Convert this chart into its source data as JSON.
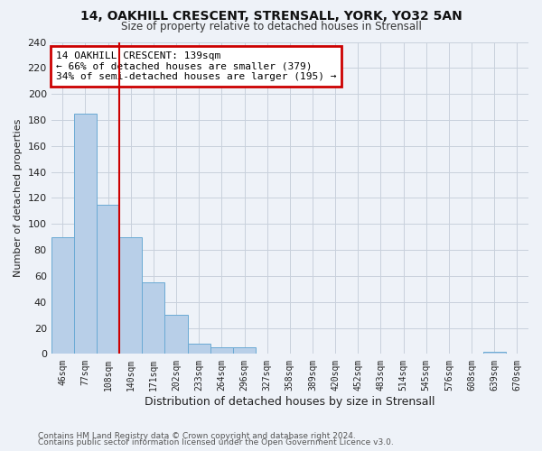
{
  "title1": "14, OAKHILL CRESCENT, STRENSALL, YORK, YO32 5AN",
  "title2": "Size of property relative to detached houses in Strensall",
  "xlabel": "Distribution of detached houses by size in Strensall",
  "ylabel": "Number of detached properties",
  "bar_labels": [
    "46sqm",
    "77sqm",
    "108sqm",
    "140sqm",
    "171sqm",
    "202sqm",
    "233sqm",
    "264sqm",
    "296sqm",
    "327sqm",
    "358sqm",
    "389sqm",
    "420sqm",
    "452sqm",
    "483sqm",
    "514sqm",
    "545sqm",
    "576sqm",
    "608sqm",
    "639sqm",
    "670sqm"
  ],
  "bar_values": [
    90,
    185,
    115,
    90,
    55,
    30,
    8,
    5,
    5,
    0,
    0,
    0,
    0,
    0,
    0,
    0,
    0,
    0,
    0,
    2,
    0
  ],
  "bar_color": "#b8cfe8",
  "bar_edge_color": "#6aaad4",
  "vline_x": 2.5,
  "vline_color": "#cc0000",
  "annotation_title": "14 OAKHILL CRESCENT: 139sqm",
  "annotation_line1": "← 66% of detached houses are smaller (379)",
  "annotation_line2": "34% of semi-detached houses are larger (195) →",
  "annotation_box_color": "#cc0000",
  "ylim": [
    0,
    240
  ],
  "yticks": [
    0,
    20,
    40,
    60,
    80,
    100,
    120,
    140,
    160,
    180,
    200,
    220,
    240
  ],
  "footnote1": "Contains HM Land Registry data © Crown copyright and database right 2024.",
  "footnote2": "Contains public sector information licensed under the Open Government Licence v3.0.",
  "bg_color": "#eef2f8"
}
